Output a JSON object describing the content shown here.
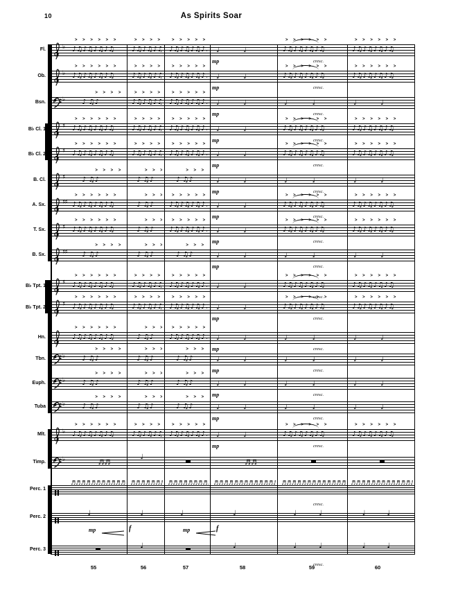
{
  "page": {
    "number": "10",
    "title": "As Spirits Soar"
  },
  "score": {
    "measure_numbers": [
      "55",
      "56",
      "57",
      "58",
      "59",
      "60"
    ],
    "dynamics_labels": {
      "mp": "mp",
      "f": "f",
      "cresc": "cresc."
    },
    "glyphs": {
      "run": "♪♫♪♫♪♫♪♫",
      "mix": "♪ ♫♪",
      "long": "♩",
      "dense": "♬♬♬♬♬♬♬♬♬♬♬♬♬♬",
      "hit": "♩",
      "clu": "♬♬",
      "accents": "> > > > > >"
    },
    "staves": [
      {
        "label": "Fl.",
        "clef": "treble",
        "key": "♭",
        "patterns": [
          "run",
          "run",
          "run",
          "long",
          "run",
          "run"
        ],
        "mp": true,
        "cresc": true
      },
      {
        "label": "Ob.",
        "clef": "treble",
        "key": "♭",
        "patterns": [
          "run",
          "run",
          "run",
          "long",
          "run",
          "run"
        ],
        "mp": true,
        "cresc": true
      },
      {
        "label": "Bsn.",
        "clef": "bass",
        "key": "♭",
        "patterns": [
          "mix",
          "run",
          "run",
          "long",
          "long",
          "long"
        ],
        "mp": true,
        "cresc": true
      },
      {
        "label": "B♭ Cl. 1",
        "clef": "treble",
        "key": "♯",
        "patterns": [
          "run",
          "run",
          "run",
          "long",
          "run",
          "run"
        ],
        "mp": true,
        "cresc": true
      },
      {
        "label": "B♭ Cl. 2",
        "clef": "treble",
        "key": "♯",
        "patterns": [
          "run",
          "run",
          "run",
          "long",
          "run",
          "run"
        ],
        "mp": true,
        "cresc": true
      },
      {
        "label": "B. Cl.",
        "clef": "treble",
        "key": "♯",
        "patterns": [
          "mix",
          "mix",
          "mix",
          "long",
          "long",
          "long"
        ],
        "mp": true,
        "cresc": true
      },
      {
        "label": "A. Sx.",
        "clef": "treble",
        "key": "♯♯",
        "patterns": [
          "run",
          "mix",
          "run",
          "long",
          "run",
          "run"
        ],
        "mp": true,
        "cresc": true
      },
      {
        "label": "T. Sx.",
        "clef": "treble",
        "key": "♯",
        "patterns": [
          "run",
          "mix",
          "run",
          "long",
          "run",
          "run"
        ],
        "mp": true,
        "cresc": true
      },
      {
        "label": "B. Sx.",
        "clef": "treble",
        "key": "♯♯",
        "patterns": [
          "mix",
          "mix",
          "mix",
          "long",
          "long",
          "long"
        ],
        "mp": true,
        "cresc": true
      },
      {
        "label": "B♭ Tpt. 1",
        "clef": "treble",
        "key": "♯",
        "patterns": [
          "run",
          "run",
          "run",
          "long",
          "run",
          "run"
        ],
        "mp": false,
        "cresc": true
      },
      {
        "label": "B♭ Tpt. 2",
        "clef": "treble",
        "key": "♯",
        "patterns": [
          "run",
          "run",
          "run",
          "long",
          "run",
          "run"
        ],
        "mp": true,
        "cresc": true
      },
      {
        "label": "Hn.",
        "clef": "treble",
        "key": "",
        "patterns": [
          "run",
          "mix",
          "run",
          "long",
          "long",
          "long"
        ],
        "mp": true,
        "cresc": true
      },
      {
        "label": "Tbn.",
        "clef": "bass",
        "key": "♭",
        "patterns": [
          "mix",
          "mix",
          "mix",
          "long",
          "long",
          "long"
        ],
        "mp": true,
        "cresc": true
      },
      {
        "label": "Euph.",
        "clef": "bass",
        "key": "♭",
        "patterns": [
          "mix",
          "mix",
          "mix",
          "long",
          "long",
          "long"
        ],
        "mp": true,
        "cresc": true
      },
      {
        "label": "Tuba",
        "clef": "bass",
        "key": "♭",
        "patterns": [
          "mix",
          "mix",
          "mix",
          "long",
          "long",
          "long"
        ],
        "mp": true,
        "cresc": true
      },
      {
        "label": "Mlt.",
        "clef": "treble",
        "key": "♭",
        "patterns": [
          "run",
          "run",
          "run",
          "long",
          "run",
          "run"
        ],
        "mp": true,
        "cresc": true
      },
      {
        "label": "Timp.",
        "clef": "bass",
        "key": "♭",
        "patterns": [
          "clu",
          "hit",
          "rest",
          "clu",
          "rest",
          "rest"
        ],
        "mp": false,
        "cresc": false
      },
      {
        "label": "Perc. 1",
        "clef": "perc",
        "key": "",
        "patterns": [
          "dense",
          "dense",
          "dense",
          "dense",
          "dense",
          "dense"
        ],
        "mp": false,
        "cresc": true
      },
      {
        "label": "Perc. 2",
        "clef": "perc",
        "key": "",
        "patterns": [
          "hit",
          "hit",
          "hit",
          "hit",
          "hit2",
          "hit2"
        ],
        "mp": false,
        "cresc": false
      },
      {
        "label": "Perc. 3",
        "clef": "perc",
        "key": "",
        "patterns": [
          "rest",
          "hit",
          "rest",
          "hit",
          "hit2",
          "hit2"
        ],
        "mp": false,
        "cresc": true
      }
    ],
    "perc2_hairpins": [
      {
        "start_label": "mp",
        "end_label": "f"
      },
      {
        "start_label": "mp",
        "end_label": "f"
      }
    ]
  }
}
